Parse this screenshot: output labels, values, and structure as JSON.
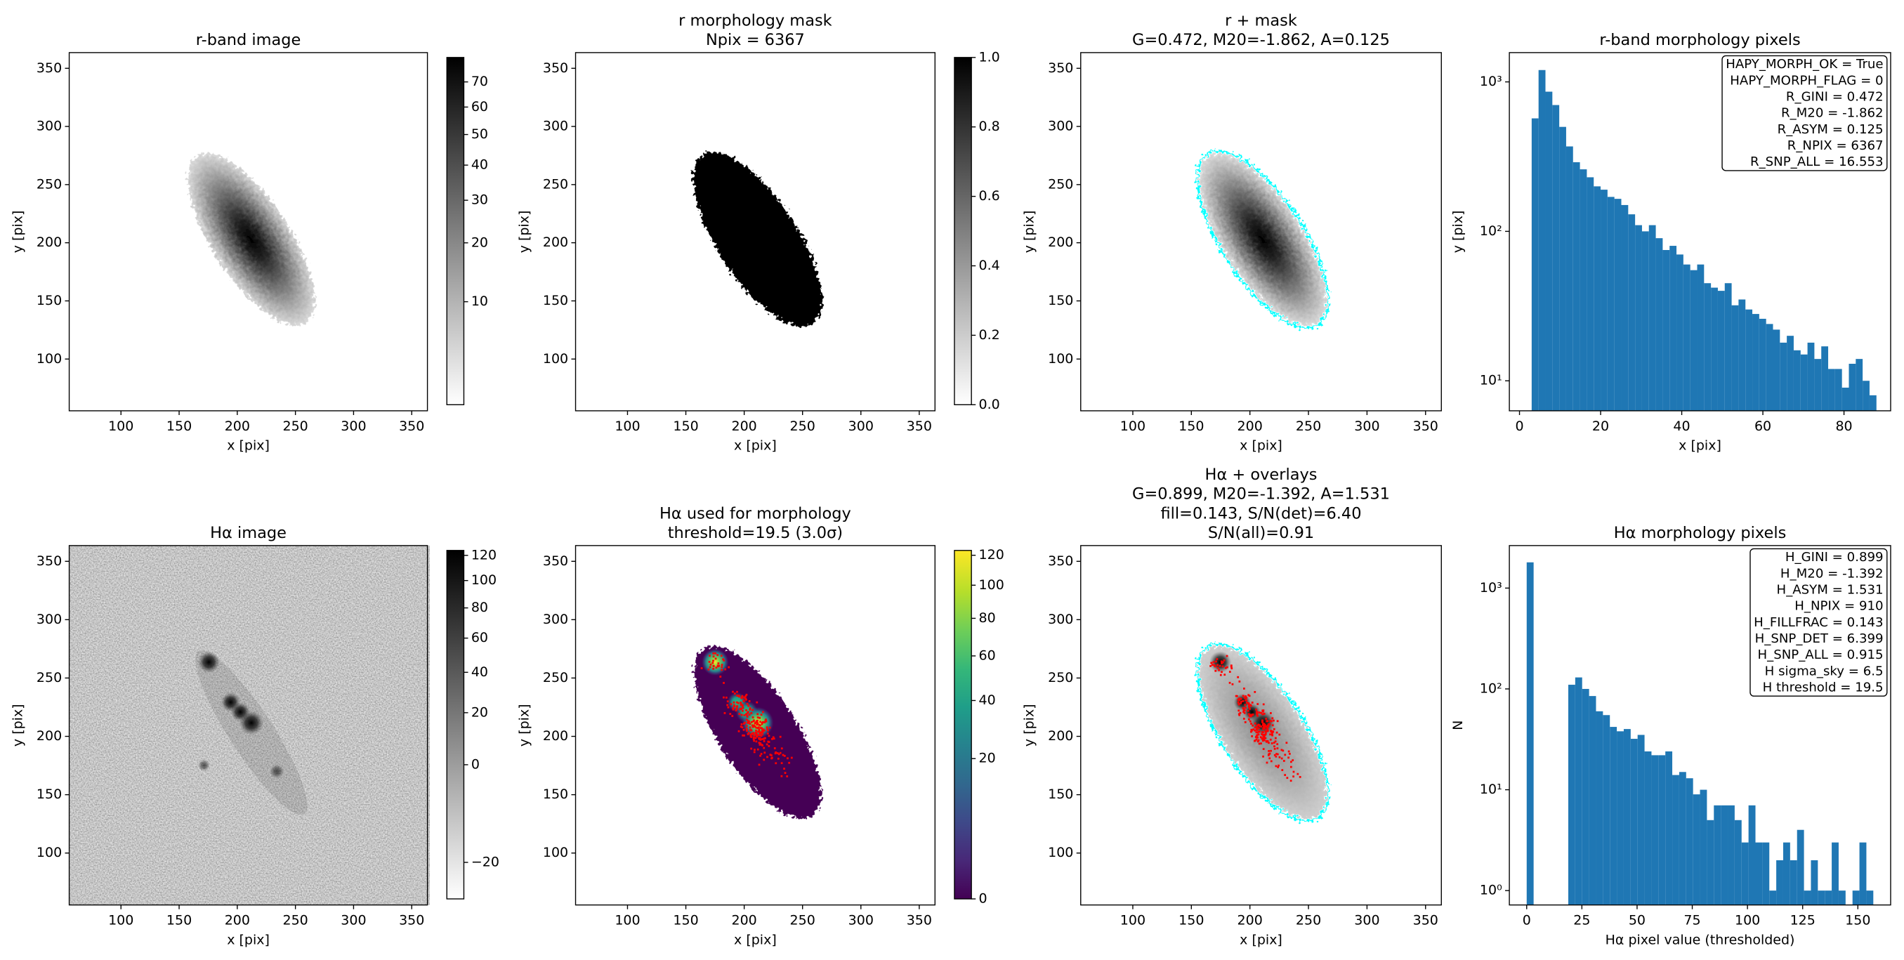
{
  "chart_data": [
    {
      "type": "image",
      "title": [
        "r-band image"
      ],
      "xlabel": "x [pix]",
      "ylabel": "y [pix]",
      "xlim": [
        55.5,
        363.5
      ],
      "ylim": [
        55.5,
        363.5
      ],
      "xticks": [
        100,
        150,
        200,
        250,
        300,
        350
      ],
      "yticks": [
        100,
        150,
        200,
        250,
        300,
        350
      ],
      "colorbar": {
        "colormap": "gray_r",
        "scale": "sqrt",
        "lim": [
          3.2,
          80.5
        ],
        "ticks": [
          10,
          20,
          30,
          40,
          50,
          60,
          70
        ]
      }
    },
    {
      "type": "image",
      "title": [
        "r morphology mask",
        "Npix = 6367"
      ],
      "xlabel": "x [pix]",
      "ylabel": "y [pix]",
      "xlim": [
        55.5,
        363.5
      ],
      "ylim": [
        55.5,
        363.5
      ],
      "xticks": [
        100,
        150,
        200,
        250,
        300,
        350
      ],
      "yticks": [
        100,
        150,
        200,
        250,
        300,
        350
      ],
      "colorbar": {
        "colormap": "gray_r",
        "scale": "linear",
        "lim": [
          0,
          1
        ],
        "ticks": [
          {
            "value": 0,
            "label": "0.0"
          },
          {
            "value": 0.2,
            "label": "0.2"
          },
          {
            "value": 0.4,
            "label": "0.4"
          },
          {
            "value": 0.6,
            "label": "0.6"
          },
          {
            "value": 0.8,
            "label": "0.8"
          },
          {
            "value": 1,
            "label": "1.0"
          }
        ]
      }
    },
    {
      "type": "image",
      "title": [
        "r + mask",
        "G=0.472, M20=-1.862, A=0.125"
      ],
      "xlabel": "x [pix]",
      "ylabel": "y [pix]",
      "xlim": [
        55.5,
        363.5
      ],
      "ylim": [
        55.5,
        363.5
      ],
      "xticks": [
        100,
        150,
        200,
        250,
        300,
        350
      ],
      "yticks": [
        100,
        150,
        200,
        250,
        300,
        350
      ]
    },
    {
      "type": "histogram",
      "title": [
        "r-band morphology pixels"
      ],
      "xlabel": "x [pix]",
      "ylabel": "y [pix]",
      "color": "#1f77b4",
      "yscale": "log",
      "xlim": [
        -2.5,
        91.5
      ],
      "ylim": [
        6.3,
        1570
      ],
      "xticks": [
        0,
        20,
        40,
        60,
        80
      ],
      "yticks": [
        {
          "value": 10,
          "label": "10¹"
        },
        {
          "value": 100,
          "label": "10²"
        },
        {
          "value": 1000,
          "label": "10³"
        }
      ],
      "bins": [
        3.0,
        4.7,
        6.4,
        8.1,
        9.8,
        11.5,
        13.2,
        14.9,
        16.6,
        18.3,
        20.0,
        21.7,
        23.4,
        25.1,
        26.8,
        28.5,
        30.2,
        31.9,
        33.6,
        35.3,
        37.0,
        38.7,
        40.4,
        42.1,
        43.8,
        45.5,
        47.2,
        48.9,
        50.6,
        52.3,
        54.0,
        55.7,
        57.4,
        59.1,
        60.8,
        62.5,
        64.2,
        65.9,
        67.6,
        69.3,
        71.0,
        72.7,
        74.4,
        76.1,
        77.8,
        79.5,
        81.2,
        82.9,
        84.6,
        86.3,
        88.0
      ],
      "values": [
        570,
        1200,
        860,
        700,
        500,
        370,
        290,
        260,
        230,
        200,
        190,
        170,
        165,
        150,
        130,
        110,
        100,
        110,
        90,
        75,
        80,
        70,
        60,
        55,
        60,
        45,
        42,
        40,
        45,
        32,
        35,
        30,
        28,
        26,
        24,
        22,
        18,
        20,
        16,
        15,
        18,
        14,
        17,
        12,
        12,
        9,
        13,
        14,
        10,
        8
      ],
      "annotation": [
        "HAPY_MORPH_OK = True",
        "HAPY_MORPH_FLAG = 0",
        "R_GINI = 0.472",
        "R_M20 = -1.862",
        "R_ASYM = 0.125",
        "R_NPIX = 6367",
        "R_SNP_ALL = 16.553"
      ]
    },
    {
      "type": "image",
      "title": [
        "Hα image"
      ],
      "xlabel": "x [pix]",
      "ylabel": "y [pix]",
      "xlim": [
        55.5,
        363.5
      ],
      "ylim": [
        55.5,
        363.5
      ],
      "xticks": [
        100,
        150,
        200,
        250,
        300,
        350
      ],
      "yticks": [
        100,
        150,
        200,
        250,
        300,
        350
      ],
      "colorbar": {
        "colormap": "gray_r",
        "scale": "sqrt",
        "lim": [
          -21.6,
          124.1
        ],
        "ticks": [
          {
            "value": -20,
            "label": "−20"
          },
          0,
          20,
          40,
          60,
          80,
          100,
          120
        ]
      }
    },
    {
      "type": "image",
      "title": [
        "Hα used for morphology",
        "threshold=19.5 (3.0σ)"
      ],
      "xlabel": "x [pix]",
      "ylabel": "y [pix]",
      "xlim": [
        55.5,
        363.5
      ],
      "ylim": [
        55.5,
        363.5
      ],
      "xticks": [
        100,
        150,
        200,
        250,
        300,
        350
      ],
      "yticks": [
        100,
        150,
        200,
        250,
        300,
        350
      ],
      "colorbar": {
        "colormap": "viridis",
        "scale": "sqrt",
        "lim": [
          0,
          123.4
        ],
        "ticks": [
          0,
          20,
          40,
          60,
          80,
          100,
          120
        ]
      }
    },
    {
      "type": "image",
      "title": [
        "Hα + overlays",
        "G=0.899, M20=-1.392, A=1.531",
        "fill=0.143, S/N(det)=6.40",
        "S/N(all)=0.91"
      ],
      "xlabel": "x [pix]",
      "ylabel": "y [pix]",
      "xlim": [
        55.5,
        363.5
      ],
      "ylim": [
        55.5,
        363.5
      ],
      "xticks": [
        100,
        150,
        200,
        250,
        300,
        350
      ],
      "yticks": [
        100,
        150,
        200,
        250,
        300,
        350
      ]
    },
    {
      "type": "histogram",
      "title": [
        "Hα morphology pixels"
      ],
      "xlabel": "Hα pixel value (thresholded)",
      "ylabel": "N",
      "color": "#1f77b4",
      "yscale": "log",
      "xlim": [
        -7.85,
        164.85
      ],
      "ylim": [
        0.72,
        2640
      ],
      "xticks": [
        0,
        25,
        50,
        75,
        100,
        125,
        150
      ],
      "yticks": [
        {
          "value": 1,
          "label": "10⁰"
        },
        {
          "value": 10,
          "label": "10¹"
        },
        {
          "value": 100,
          "label": "10²"
        },
        {
          "value": 1000,
          "label": "10³"
        }
      ],
      "bins": [
        0,
        3.14,
        6.28,
        9.42,
        12.56,
        15.7,
        18.84,
        21.98,
        25.12,
        28.26,
        31.4,
        34.54,
        37.68,
        40.82,
        43.96,
        47.1,
        50.24,
        53.38,
        56.52,
        59.66,
        62.8,
        65.94,
        69.08,
        72.22,
        75.36,
        78.5,
        81.64,
        84.78,
        87.92,
        91.06,
        94.2,
        97.34,
        100.48,
        103.62,
        106.76,
        109.9,
        113.04,
        116.18,
        119.32,
        122.46,
        125.6,
        128.74,
        131.88,
        135.02,
        138.16,
        141.3,
        144.44,
        147.58,
        150.72,
        153.86,
        157
      ],
      "values": [
        1800,
        0,
        0,
        0,
        0,
        0,
        110,
        130,
        100,
        85,
        60,
        55,
        42,
        38,
        40,
        32,
        35,
        24,
        22,
        22,
        24,
        14,
        15,
        13,
        9,
        10,
        5,
        7,
        7,
        7,
        5,
        3,
        7,
        3,
        3,
        1,
        2,
        3,
        2,
        4,
        1,
        2,
        1,
        1,
        3,
        1,
        0,
        1,
        3,
        1
      ],
      "annotation": [
        "H_GINI = 0.899",
        "H_M20 = -1.392",
        "H_ASYM = 1.531",
        "H_NPIX = 910",
        "H_FILLFRAC = 0.143",
        "H_SNP_DET = 6.399",
        "H_SNP_ALL = 0.915",
        "H sigma_sky = 6.5",
        "H threshold = 19.5"
      ]
    }
  ]
}
